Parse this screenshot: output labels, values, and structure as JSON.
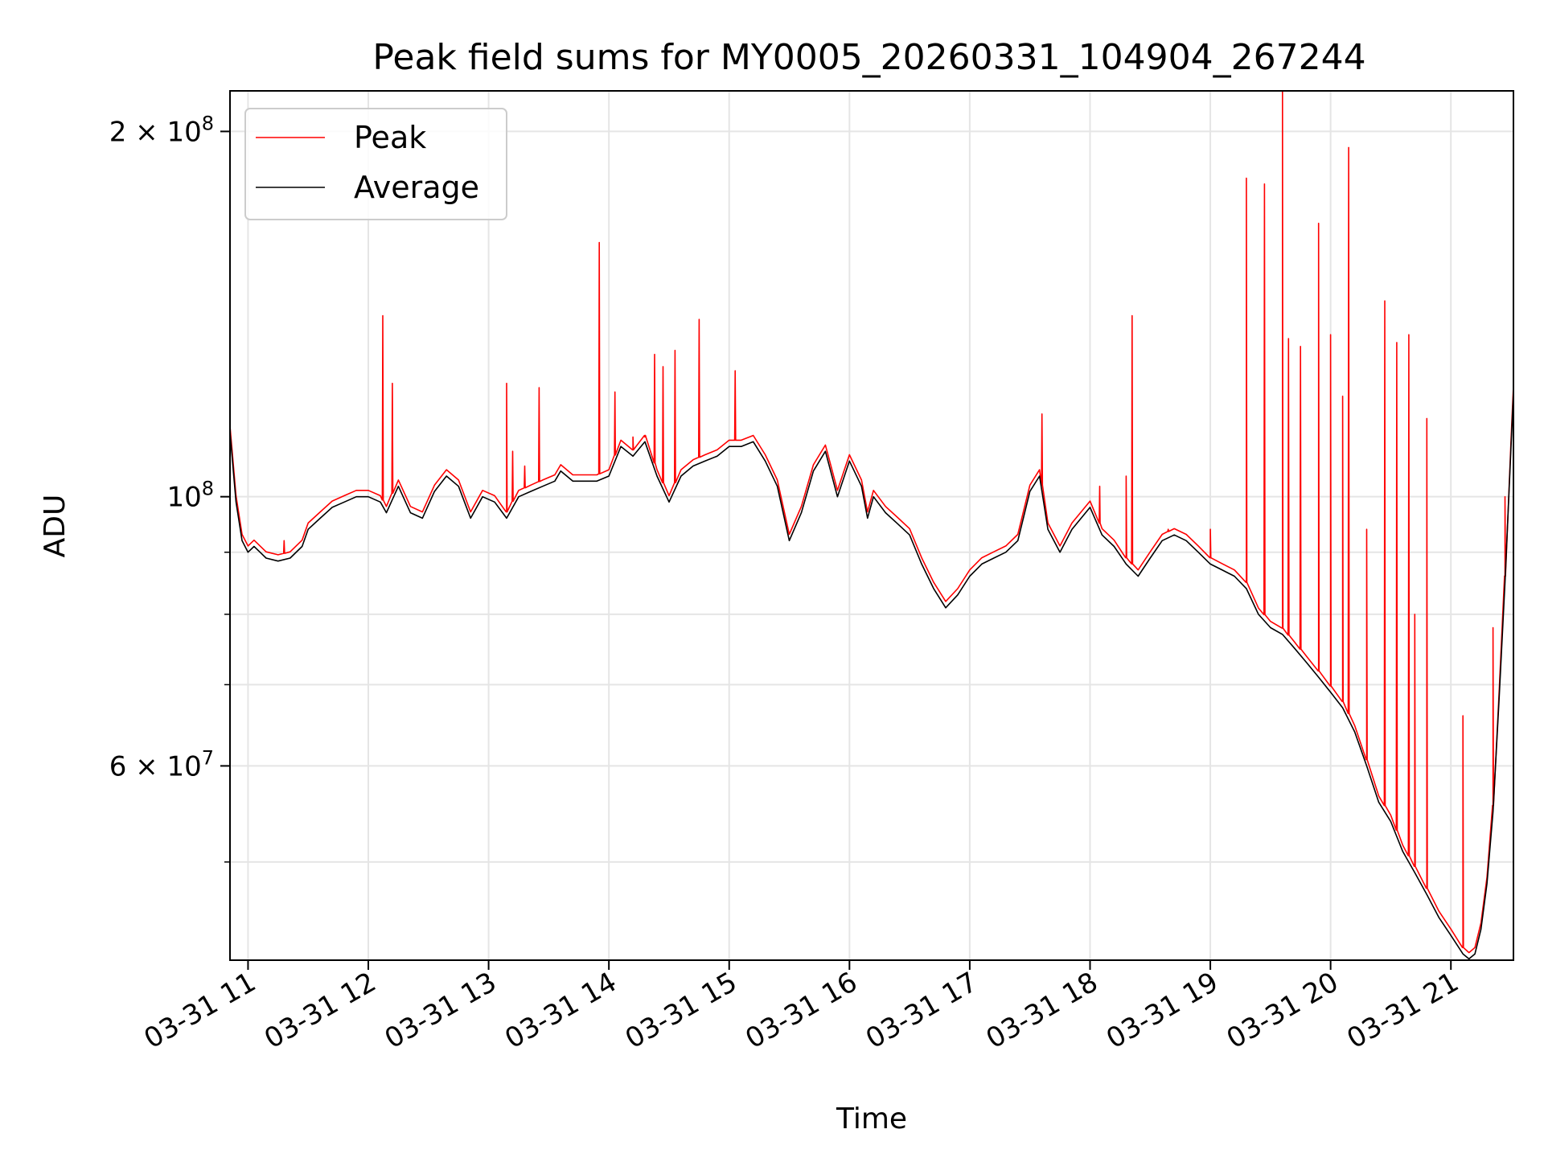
{
  "chart_data": {
    "type": "line",
    "title": "Peak field sums for MY0005_20260331_104904_267244",
    "xlabel": "Time",
    "ylabel": "ADU",
    "yscale": "log",
    "ylim": [
      41500000,
      216000000
    ],
    "xlim": [
      10.85,
      21.52
    ],
    "grid": true,
    "legend_location": "top-left",
    "x_ticks": [
      {
        "value": 11,
        "label": "03-31 11"
      },
      {
        "value": 12,
        "label": "03-31 12"
      },
      {
        "value": 13,
        "label": "03-31 13"
      },
      {
        "value": 14,
        "label": "03-31 14"
      },
      {
        "value": 15,
        "label": "03-31 15"
      },
      {
        "value": 16,
        "label": "03-31 16"
      },
      {
        "value": 17,
        "label": "03-31 17"
      },
      {
        "value": 18,
        "label": "03-31 18"
      },
      {
        "value": 19,
        "label": "03-31 19"
      },
      {
        "value": 20,
        "label": "03-31 20"
      },
      {
        "value": 21,
        "label": "03-31 21"
      }
    ],
    "y_major_ticks": [
      {
        "value": 60000000,
        "base": "6 × 10",
        "exp": "7"
      },
      {
        "value": 100000000,
        "base": "10",
        "exp": "8"
      },
      {
        "value": 200000000,
        "base": "2 × 10",
        "exp": "8"
      }
    ],
    "y_minor_ticks": [
      50000000,
      70000000,
      80000000,
      90000000
    ],
    "series": [
      {
        "name": "Average",
        "color": "#000000",
        "points": [
          [
            10.85,
            113000000
          ],
          [
            10.9,
            99000000
          ],
          [
            10.95,
            92000000
          ],
          [
            11.0,
            90000000
          ],
          [
            11.05,
            91000000
          ],
          [
            11.1,
            90000000
          ],
          [
            11.15,
            89000000
          ],
          [
            11.25,
            88500000
          ],
          [
            11.35,
            89000000
          ],
          [
            11.45,
            91000000
          ],
          [
            11.5,
            94000000
          ],
          [
            11.6,
            96000000
          ],
          [
            11.7,
            98000000
          ],
          [
            11.8,
            99000000
          ],
          [
            11.9,
            100000000
          ],
          [
            12.0,
            100000000
          ],
          [
            12.1,
            99000000
          ],
          [
            12.15,
            97000000
          ],
          [
            12.25,
            102000000
          ],
          [
            12.35,
            97000000
          ],
          [
            12.45,
            96000000
          ],
          [
            12.55,
            101000000
          ],
          [
            12.65,
            104000000
          ],
          [
            12.75,
            102000000
          ],
          [
            12.85,
            96000000
          ],
          [
            12.95,
            100000000
          ],
          [
            13.05,
            99000000
          ],
          [
            13.15,
            96000000
          ],
          [
            13.25,
            100000000
          ],
          [
            13.35,
            101000000
          ],
          [
            13.45,
            102000000
          ],
          [
            13.55,
            103000000
          ],
          [
            13.6,
            105000000
          ],
          [
            13.7,
            103000000
          ],
          [
            13.8,
            103000000
          ],
          [
            13.9,
            103000000
          ],
          [
            14.0,
            104000000
          ],
          [
            14.1,
            110000000
          ],
          [
            14.2,
            108000000
          ],
          [
            14.3,
            111000000
          ],
          [
            14.4,
            104000000
          ],
          [
            14.5,
            99000000
          ],
          [
            14.6,
            104000000
          ],
          [
            14.7,
            106000000
          ],
          [
            14.8,
            107000000
          ],
          [
            14.9,
            108000000
          ],
          [
            15.0,
            110000000
          ],
          [
            15.1,
            110000000
          ],
          [
            15.2,
            111000000
          ],
          [
            15.3,
            107000000
          ],
          [
            15.4,
            102000000
          ],
          [
            15.5,
            92000000
          ],
          [
            15.6,
            97000000
          ],
          [
            15.7,
            105000000
          ],
          [
            15.8,
            109000000
          ],
          [
            15.9,
            100000000
          ],
          [
            16.0,
            107000000
          ],
          [
            16.1,
            102000000
          ],
          [
            16.15,
            96000000
          ],
          [
            16.2,
            100000000
          ],
          [
            16.3,
            97000000
          ],
          [
            16.4,
            95000000
          ],
          [
            16.5,
            93000000
          ],
          [
            16.6,
            88000000
          ],
          [
            16.7,
            84000000
          ],
          [
            16.8,
            81000000
          ],
          [
            16.9,
            83000000
          ],
          [
            17.0,
            86000000
          ],
          [
            17.1,
            88000000
          ],
          [
            17.2,
            89000000
          ],
          [
            17.3,
            90000000
          ],
          [
            17.4,
            92000000
          ],
          [
            17.5,
            101000000
          ],
          [
            17.58,
            104000000
          ],
          [
            17.65,
            94000000
          ],
          [
            17.75,
            90000000
          ],
          [
            17.85,
            94000000
          ],
          [
            18.0,
            98000000
          ],
          [
            18.1,
            93000000
          ],
          [
            18.2,
            91000000
          ],
          [
            18.3,
            88000000
          ],
          [
            18.4,
            86000000
          ],
          [
            18.5,
            89000000
          ],
          [
            18.6,
            92000000
          ],
          [
            18.7,
            93000000
          ],
          [
            18.8,
            92000000
          ],
          [
            18.9,
            90000000
          ],
          [
            19.0,
            88000000
          ],
          [
            19.1,
            87000000
          ],
          [
            19.2,
            86000000
          ],
          [
            19.3,
            84000000
          ],
          [
            19.4,
            80000000
          ],
          [
            19.5,
            78000000
          ],
          [
            19.6,
            77000000
          ],
          [
            19.7,
            75000000
          ],
          [
            19.8,
            73000000
          ],
          [
            19.9,
            71000000
          ],
          [
            20.0,
            69000000
          ],
          [
            20.1,
            67000000
          ],
          [
            20.2,
            64000000
          ],
          [
            20.3,
            60000000
          ],
          [
            20.4,
            56000000
          ],
          [
            20.5,
            54000000
          ],
          [
            20.6,
            51000000
          ],
          [
            20.7,
            49000000
          ],
          [
            20.8,
            47000000
          ],
          [
            20.9,
            45000000
          ],
          [
            21.0,
            43500000
          ],
          [
            21.1,
            42000000
          ],
          [
            21.15,
            41600000
          ],
          [
            21.2,
            42000000
          ],
          [
            21.25,
            44000000
          ],
          [
            21.3,
            48000000
          ],
          [
            21.35,
            55000000
          ],
          [
            21.4,
            68000000
          ],
          [
            21.45,
            85000000
          ],
          [
            21.5,
            110000000
          ],
          [
            21.52,
            122000000
          ]
        ]
      },
      {
        "name": "Peak",
        "color": "#ff0000",
        "spikes": [
          [
            11.3,
            92000000
          ],
          [
            12.12,
            141000000
          ],
          [
            12.2,
            124000000
          ],
          [
            13.15,
            124000000
          ],
          [
            13.2,
            109000000
          ],
          [
            13.3,
            106000000
          ],
          [
            13.42,
            123000000
          ],
          [
            13.92,
            162000000
          ],
          [
            14.05,
            122000000
          ],
          [
            14.2,
            112000000
          ],
          [
            14.3,
            112000000
          ],
          [
            14.38,
            131000000
          ],
          [
            14.45,
            128000000
          ],
          [
            14.55,
            132000000
          ],
          [
            14.75,
            140000000
          ],
          [
            15.05,
            127000000
          ],
          [
            17.6,
            117000000
          ],
          [
            18.08,
            102000000
          ],
          [
            18.3,
            104000000
          ],
          [
            18.35,
            141000000
          ],
          [
            18.65,
            94000000
          ],
          [
            19.0,
            94000000
          ],
          [
            19.3,
            183000000
          ],
          [
            19.45,
            181000000
          ],
          [
            19.6,
            216000000
          ],
          [
            19.65,
            135000000
          ],
          [
            19.75,
            133000000
          ],
          [
            19.9,
            168000000
          ],
          [
            20.0,
            136000000
          ],
          [
            20.1,
            121000000
          ],
          [
            20.15,
            194000000
          ],
          [
            20.3,
            94000000
          ],
          [
            20.45,
            145000000
          ],
          [
            20.55,
            134000000
          ],
          [
            20.65,
            136000000
          ],
          [
            20.7,
            80000000
          ],
          [
            20.8,
            116000000
          ],
          [
            21.1,
            66000000
          ],
          [
            21.35,
            78000000
          ],
          [
            21.45,
            100000000
          ]
        ]
      }
    ]
  }
}
